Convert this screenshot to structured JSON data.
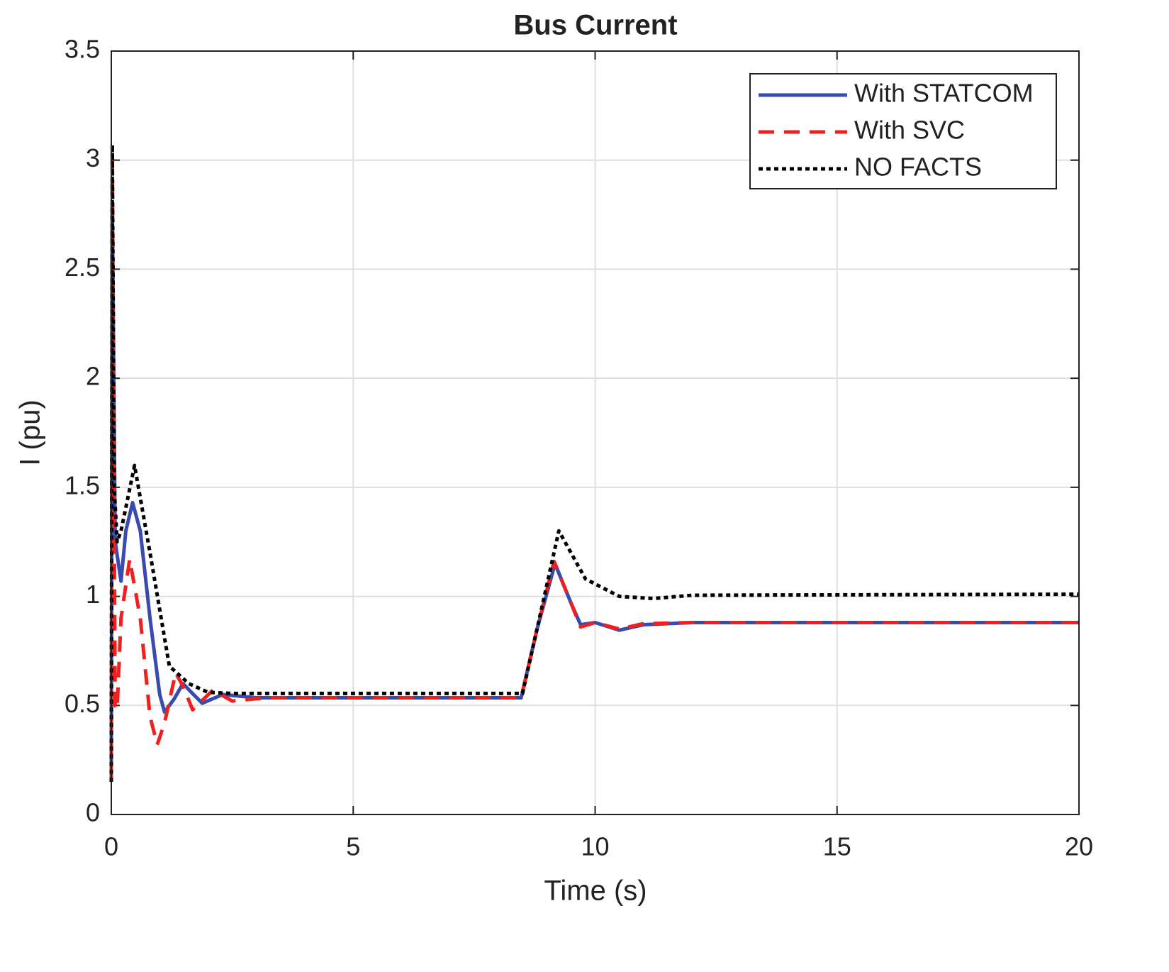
{
  "chart_data": {
    "type": "line",
    "title": "Bus Current",
    "xlabel": "Time (s)",
    "ylabel": "I (pu)",
    "xlim": [
      0,
      20
    ],
    "ylim": [
      0,
      3.5
    ],
    "xticks": [
      0,
      5,
      10,
      15,
      20
    ],
    "yticks": [
      0,
      0.5,
      1,
      1.5,
      2,
      2.5,
      3,
      3.5
    ],
    "grid": true,
    "legend": "upper right",
    "series": [
      {
        "name": "With STATCOM",
        "color": "#3a4bb0",
        "dash": "solid",
        "x": [
          0,
          0.02,
          0.08,
          0.2,
          0.3,
          0.44,
          0.6,
          0.8,
          1.0,
          1.1,
          1.3,
          1.48,
          1.7,
          1.88,
          2.3,
          3,
          8.47,
          8.8,
          9.17,
          9.5,
          9.7,
          10.0,
          10.5,
          11,
          12,
          20
        ],
        "values": [
          0.2,
          2.8,
          1.25,
          1.07,
          1.3,
          1.43,
          1.3,
          0.9,
          0.55,
          0.47,
          0.53,
          0.6,
          0.55,
          0.51,
          0.55,
          0.535,
          0.535,
          0.85,
          1.15,
          0.97,
          0.87,
          0.88,
          0.845,
          0.87,
          0.88,
          0.88
        ]
      },
      {
        "name": "With SVC",
        "color": "#f02020",
        "dash": "dashed",
        "x": [
          0,
          0.02,
          0.08,
          0.12,
          0.2,
          0.38,
          0.6,
          0.8,
          0.95,
          1.1,
          1.33,
          1.5,
          1.68,
          2.1,
          2.5,
          3.2,
          8.47,
          8.8,
          9.15,
          9.5,
          9.7,
          10.0,
          10.5,
          11,
          12,
          20
        ],
        "values": [
          0.15,
          3.05,
          0.5,
          0.48,
          0.9,
          1.17,
          0.9,
          0.45,
          0.32,
          0.42,
          0.65,
          0.58,
          0.48,
          0.57,
          0.52,
          0.535,
          0.535,
          0.85,
          1.16,
          0.97,
          0.86,
          0.88,
          0.85,
          0.875,
          0.88,
          0.88
        ]
      },
      {
        "name": "NO FACTS",
        "color": "#000000",
        "dash": "dotted",
        "x": [
          0,
          0.02,
          0.06,
          0.12,
          0.2,
          0.48,
          0.8,
          1.2,
          1.6,
          2,
          2.5,
          8.5,
          8.9,
          9.25,
          9.8,
          10.5,
          11.2,
          12,
          20
        ],
        "values": [
          0.15,
          3.07,
          1.5,
          1.25,
          1.3,
          1.6,
          1.2,
          0.68,
          0.6,
          0.56,
          0.555,
          0.555,
          0.95,
          1.3,
          1.08,
          1.0,
          0.99,
          1.005,
          1.01
        ]
      }
    ]
  }
}
